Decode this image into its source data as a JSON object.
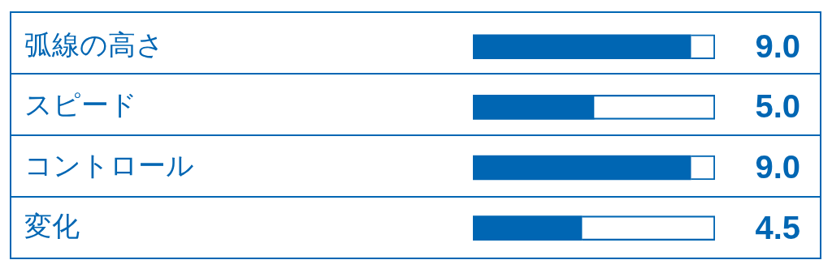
{
  "chart_data": {
    "type": "bar",
    "orientation": "horizontal",
    "categories": [
      "弧線の高さ",
      "スピード",
      "コントロール",
      "変化"
    ],
    "series": [
      {
        "color": "#0066b3",
        "values": [
          9,
          5,
          9,
          4.5
        ],
        "value_labels": [
          "9.0",
          "5.0",
          "9.0",
          "4.5"
        ]
      },
      {
        "color": "#0066b3",
        "values": [
          1,
          5,
          1,
          5.5
        ]
      }
    ],
    "stacked": true,
    "xlim": [
      0,
      10
    ],
    "tick_labels": "y",
    "grid": false,
    "legend": false
  }
}
